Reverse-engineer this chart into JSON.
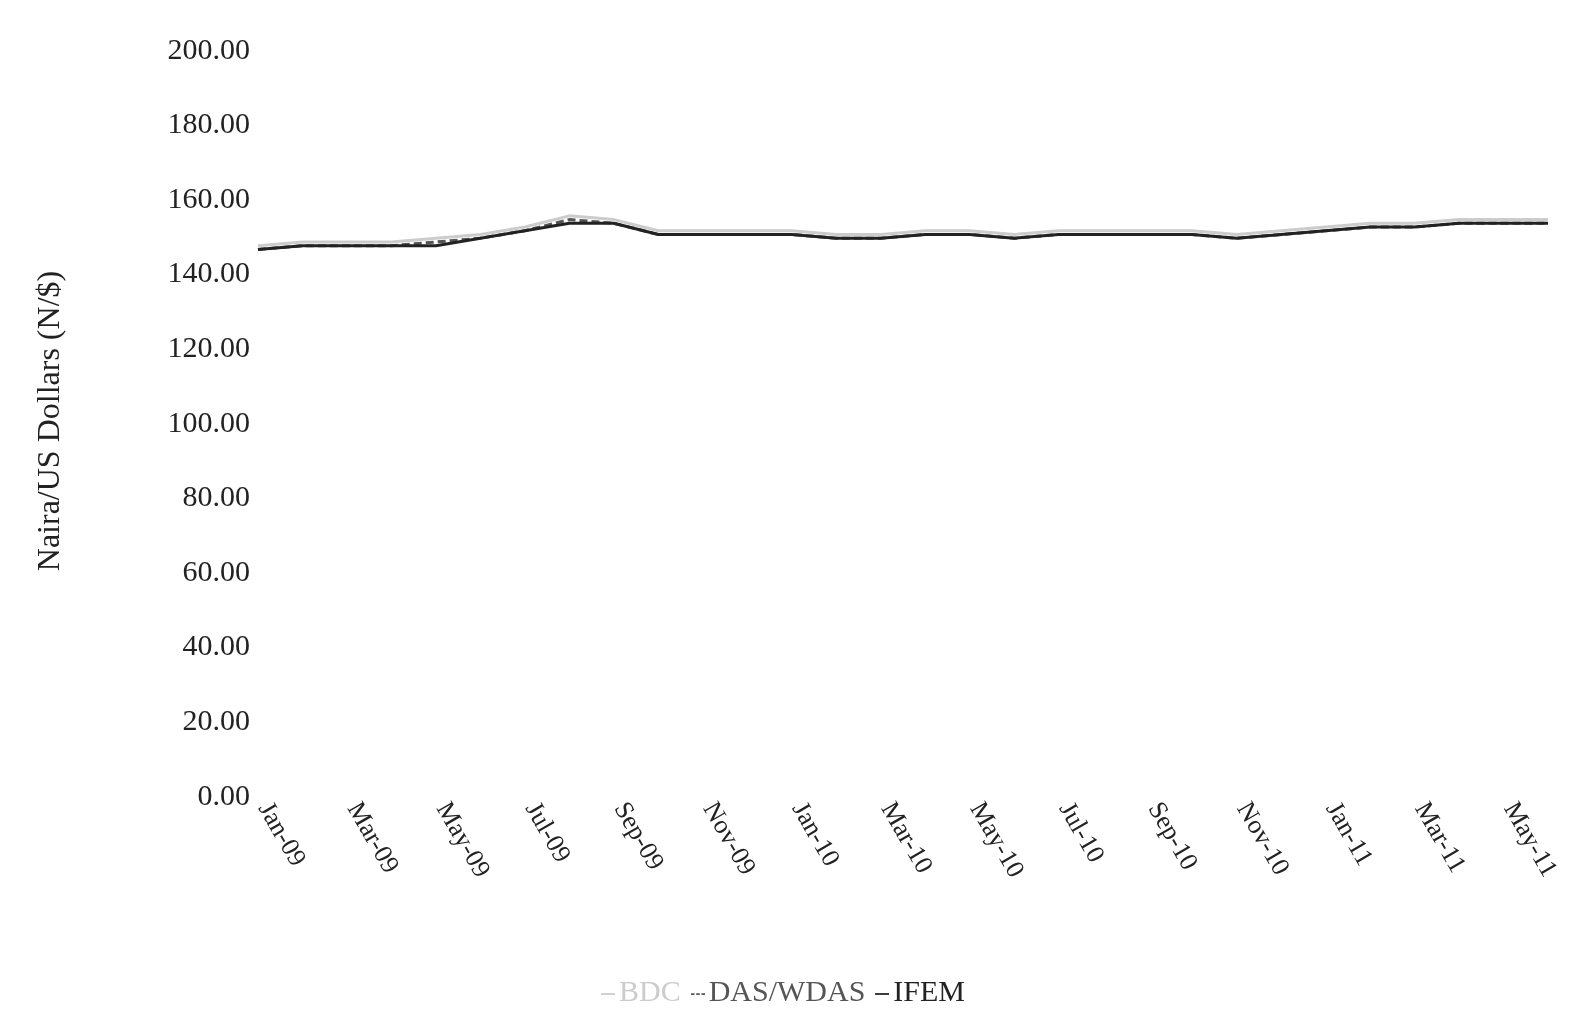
{
  "chart_data": {
    "type": "line",
    "ylabel": "Naira/US Dollars (N/$)",
    "categories": [
      "Jan-09",
      null,
      "Mar-09",
      null,
      "May-09",
      null,
      "Jul-09",
      null,
      "Sep-09",
      null,
      "Nov-09",
      null,
      "Jan-10",
      null,
      "Mar-10",
      null,
      "May-10",
      null,
      "Jul-10",
      null,
      "Sep-10",
      null,
      "Nov-10",
      null,
      "Jan-11",
      null,
      "Mar-11",
      null,
      "May-11",
      null
    ],
    "series": [
      {
        "name": "DAS/WDAS",
        "color": "#555555",
        "line_style": "dashed",
        "values": [
          146,
          147,
          147,
          147,
          148,
          149,
          151,
          154,
          153,
          150,
          150,
          150,
          150,
          149,
          149,
          150,
          150,
          149,
          150,
          150,
          150,
          150,
          149,
          150,
          151,
          152,
          152,
          153,
          153,
          153
        ]
      },
      {
        "name": "IFEM",
        "color": "#222222",
        "line_style": "solid",
        "values": [
          146,
          147,
          147,
          147,
          147,
          149,
          151,
          153,
          153,
          150,
          150,
          150,
          150,
          149,
          149,
          150,
          150,
          149,
          150,
          150,
          150,
          150,
          149,
          150,
          151,
          152,
          152,
          153,
          153,
          153
        ]
      },
      {
        "name": "BDC",
        "color": "#cccccc",
        "line_style": "solid",
        "values": [
          147,
          148,
          148,
          148,
          149,
          150,
          152,
          155,
          154,
          151,
          151,
          151,
          151,
          150,
          150,
          151,
          151,
          150,
          151,
          151,
          151,
          151,
          150,
          151,
          152,
          153,
          153,
          154,
          154,
          154
        ]
      }
    ],
    "ylim": [
      0,
      200
    ],
    "yticks": [
      {
        "value": 0,
        "label": "0.00"
      },
      {
        "value": 20,
        "label": "20.00"
      },
      {
        "value": 40,
        "label": "40.00"
      },
      {
        "value": 60,
        "label": "60.00"
      },
      {
        "value": 80,
        "label": "80.00"
      },
      {
        "value": 100,
        "label": "100.00"
      },
      {
        "value": 120,
        "label": "120.00"
      },
      {
        "value": 140,
        "label": "140.00"
      },
      {
        "value": 160,
        "label": "160.00"
      },
      {
        "value": 180,
        "label": "180.00"
      },
      {
        "value": 200,
        "label": "200.00"
      }
    ],
    "grid": false,
    "legend": "bottom"
  }
}
